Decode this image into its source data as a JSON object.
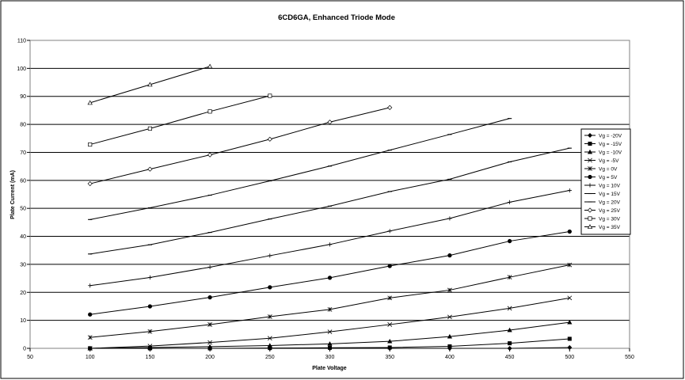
{
  "chart_data": {
    "type": "line",
    "title": "6CD6GA, Enhanced Triode Mode",
    "xlabel": "Plate Voltage",
    "ylabel": "Plate Current (mA)",
    "xlim": [
      50,
      550
    ],
    "ylim": [
      0,
      110
    ],
    "xticks": [
      50,
      100,
      150,
      200,
      250,
      300,
      350,
      400,
      450,
      500,
      550
    ],
    "yticks": [
      0,
      10,
      20,
      30,
      40,
      50,
      60,
      70,
      80,
      90,
      100,
      110
    ],
    "grid": "horizontal",
    "legend_position": "right",
    "series": [
      {
        "name": "Vg = -20V",
        "marker": "diamond-filled",
        "x": [
          100,
          150,
          200,
          250,
          300,
          350,
          400,
          450,
          500
        ],
        "y": [
          0,
          0,
          0,
          0,
          0,
          0,
          0,
          0,
          0.3
        ]
      },
      {
        "name": "Vg = -15V",
        "marker": "square-filled",
        "x": [
          100,
          150,
          200,
          250,
          300,
          350,
          400,
          450,
          500
        ],
        "y": [
          0,
          0,
          0,
          0.1,
          0.2,
          0.3,
          0.7,
          1.8,
          3.4
        ]
      },
      {
        "name": "Vg = -10V",
        "marker": "triangle-filled",
        "x": [
          100,
          150,
          200,
          250,
          300,
          350,
          400,
          450,
          500
        ],
        "y": [
          0,
          0.3,
          0.6,
          1.0,
          1.6,
          2.5,
          4.2,
          6.5,
          9.3
        ]
      },
      {
        "name": "Vg = -5V",
        "marker": "x",
        "x": [
          100,
          150,
          200,
          250,
          300,
          350,
          400,
          450,
          500
        ],
        "y": [
          0,
          0.8,
          2.1,
          3.6,
          5.9,
          8.5,
          11.2,
          14.3,
          18.0
        ]
      },
      {
        "name": "Vg = 0V",
        "marker": "asterisk",
        "x": [
          100,
          150,
          200,
          250,
          300,
          350,
          400,
          450,
          500
        ],
        "y": [
          3.9,
          6.0,
          8.5,
          11.3,
          13.9,
          18.0,
          20.8,
          25.4,
          29.8
        ]
      },
      {
        "name": "Vg = 5V",
        "marker": "circle-filled",
        "x": [
          100,
          150,
          200,
          250,
          300,
          350,
          400,
          450,
          500
        ],
        "y": [
          12.1,
          15.0,
          18.2,
          21.8,
          25.2,
          29.4,
          33.2,
          38.3,
          41.7
        ]
      },
      {
        "name": "Vg = 10V",
        "marker": "plus",
        "x": [
          100,
          150,
          200,
          250,
          300,
          350,
          400,
          450,
          500
        ],
        "y": [
          22.4,
          25.3,
          29.0,
          33.1,
          37.1,
          41.9,
          46.4,
          52.2,
          56.4
        ]
      },
      {
        "name": "Vg = 15V",
        "marker": "dash",
        "x": [
          100,
          150,
          200,
          250,
          300,
          350,
          400,
          450,
          500
        ],
        "y": [
          33.7,
          37.0,
          41.4,
          46.2,
          50.8,
          56.0,
          60.4,
          66.6,
          71.5
        ]
      },
      {
        "name": "Vg = 20V",
        "marker": "dash",
        "x": [
          100,
          150,
          200,
          250,
          300,
          350,
          400,
          450
        ],
        "y": [
          46.0,
          50.2,
          54.7,
          59.8,
          65.1,
          70.8,
          76.4,
          82.1
        ]
      },
      {
        "name": "Vg = 25V",
        "marker": "diamond-open",
        "x": [
          100,
          150,
          200,
          250,
          300,
          350
        ],
        "y": [
          58.8,
          64.0,
          69.1,
          74.7,
          80.8,
          86.0
        ]
      },
      {
        "name": "Vg = 30V",
        "marker": "square-open",
        "x": [
          100,
          150,
          200,
          250
        ],
        "y": [
          72.8,
          78.5,
          84.6,
          90.2
        ]
      },
      {
        "name": "Vg = 35V",
        "marker": "triangle-open",
        "x": [
          100,
          150,
          200
        ],
        "y": [
          87.7,
          94.2,
          100.7
        ]
      }
    ]
  }
}
